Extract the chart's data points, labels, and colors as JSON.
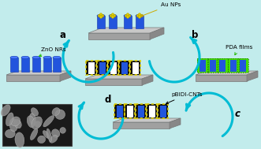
{
  "bg_cyan": "#c2ecec",
  "arrow_color": "#00bcd4",
  "label_a": "a",
  "label_b": "b",
  "label_c": "c",
  "label_d": "d",
  "text_ZnO": "ZnO NRs",
  "text_Au": "Au NPs",
  "text_PDA": "PDA films",
  "text_pBIDI": "pBIDI-CNTs",
  "blue_cyl": "#2255dd",
  "blue_cyl_dark": "#1133aa",
  "yellow_dot": "#ddcc00",
  "yellow_ring": "#ddcc00",
  "green_ring": "#44dd00",
  "black_tube": "#111111",
  "platform_top": "#c8c8c8",
  "platform_front": "#a0a0a0",
  "platform_side": "#888888",
  "sem_bg": "#1a1a1a",
  "sem_particle": "#909090"
}
